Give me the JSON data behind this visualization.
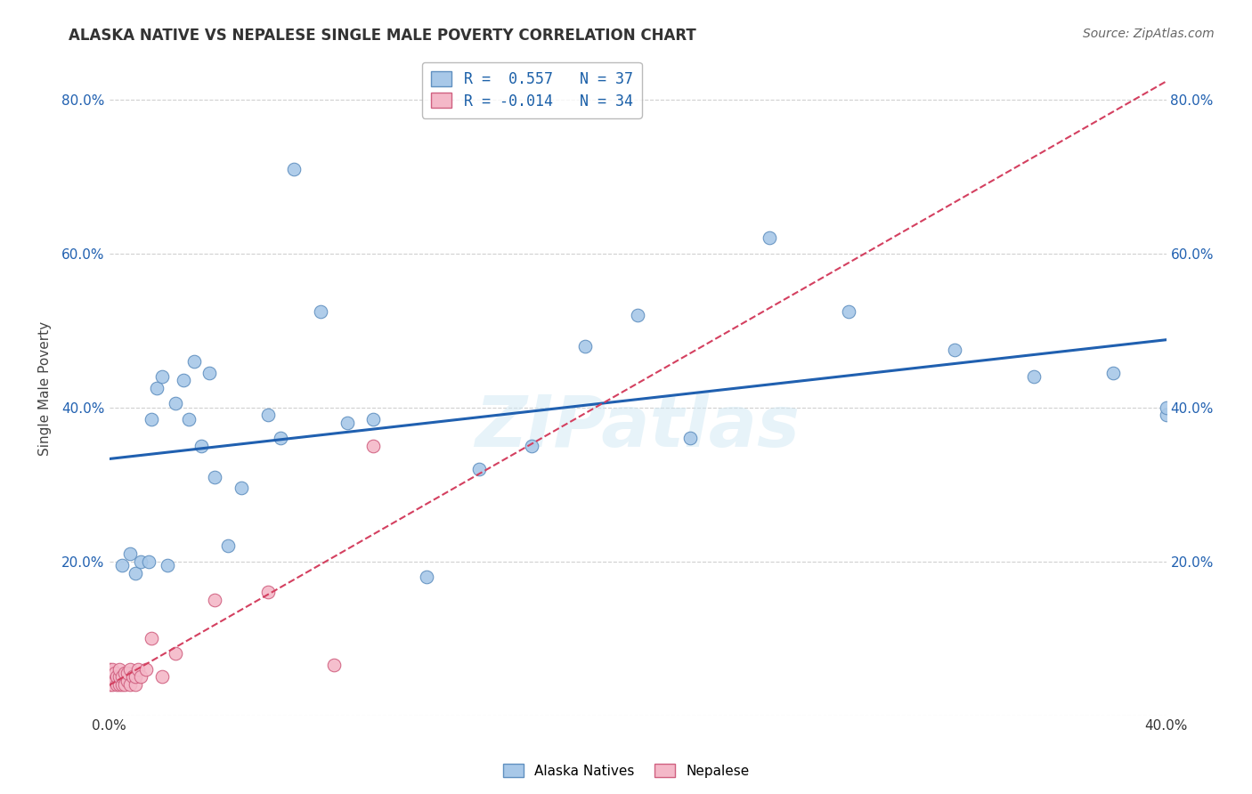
{
  "title": "ALASKA NATIVE VS NEPALESE SINGLE MALE POVERTY CORRELATION CHART",
  "source": "Source: ZipAtlas.com",
  "ylabel": "Single Male Poverty",
  "watermark": "ZIPatlas",
  "xlim": [
    0.0,
    0.4
  ],
  "ylim": [
    0.0,
    0.85
  ],
  "ytick_positions": [
    0.0,
    0.2,
    0.4,
    0.6,
    0.8
  ],
  "ytick_labels": [
    "",
    "20.0%",
    "40.0%",
    "60.0%",
    "80.0%"
  ],
  "grid_color": "#d0d0d0",
  "background_color": "#ffffff",
  "alaska_color": "#a8c8e8",
  "alaska_edge_color": "#6090c0",
  "nepalese_color": "#f4b8c8",
  "nepalese_edge_color": "#d06080",
  "alaska_R": 0.557,
  "alaska_N": 37,
  "nepalese_R": -0.014,
  "nepalese_N": 34,
  "alaska_line_color": "#2060b0",
  "nepalese_line_color": "#d44060",
  "tick_color": "#2060b0",
  "alaska_x": [
    0.005,
    0.008,
    0.01,
    0.012,
    0.015,
    0.016,
    0.018,
    0.02,
    0.022,
    0.025,
    0.028,
    0.03,
    0.032,
    0.035,
    0.038,
    0.04,
    0.045,
    0.05,
    0.06,
    0.065,
    0.07,
    0.08,
    0.09,
    0.1,
    0.12,
    0.14,
    0.16,
    0.18,
    0.2,
    0.22,
    0.25,
    0.28,
    0.32,
    0.35,
    0.38,
    0.4,
    0.4
  ],
  "alaska_y": [
    0.195,
    0.21,
    0.185,
    0.2,
    0.2,
    0.385,
    0.425,
    0.44,
    0.195,
    0.405,
    0.435,
    0.385,
    0.46,
    0.35,
    0.445,
    0.31,
    0.22,
    0.295,
    0.39,
    0.36,
    0.71,
    0.525,
    0.38,
    0.385,
    0.18,
    0.32,
    0.35,
    0.48,
    0.52,
    0.36,
    0.62,
    0.525,
    0.475,
    0.44,
    0.445,
    0.39,
    0.4
  ],
  "nepalese_x": [
    0.0,
    0.0,
    0.0,
    0.001,
    0.001,
    0.001,
    0.002,
    0.002,
    0.003,
    0.003,
    0.004,
    0.004,
    0.004,
    0.005,
    0.005,
    0.006,
    0.006,
    0.007,
    0.007,
    0.008,
    0.008,
    0.009,
    0.01,
    0.01,
    0.011,
    0.012,
    0.014,
    0.016,
    0.02,
    0.025,
    0.04,
    0.06,
    0.085,
    0.1
  ],
  "nepalese_y": [
    0.04,
    0.05,
    0.06,
    0.04,
    0.05,
    0.06,
    0.045,
    0.055,
    0.04,
    0.05,
    0.04,
    0.05,
    0.06,
    0.04,
    0.05,
    0.04,
    0.055,
    0.045,
    0.055,
    0.04,
    0.06,
    0.05,
    0.04,
    0.05,
    0.06,
    0.05,
    0.06,
    0.1,
    0.05,
    0.08,
    0.15,
    0.16,
    0.065,
    0.35
  ]
}
